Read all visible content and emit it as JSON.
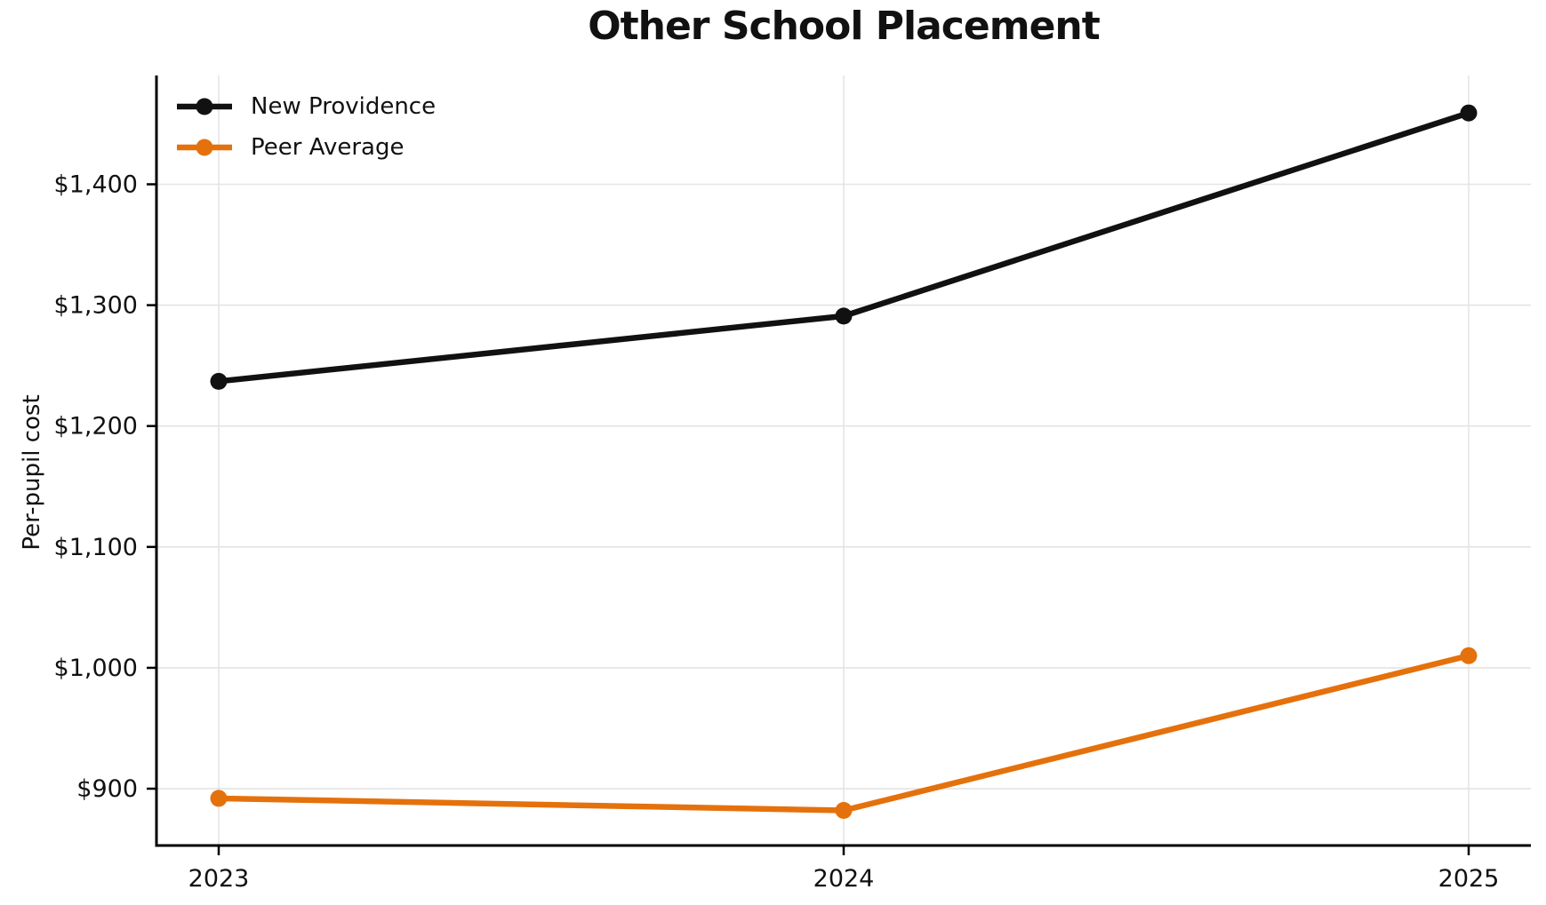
{
  "chart_data": {
    "type": "line",
    "title": "Other School Placement",
    "xlabel": "",
    "ylabel": "Per-pupil cost",
    "x": [
      2023,
      2024,
      2025
    ],
    "xtick_labels": [
      "2023",
      "2024",
      "2025"
    ],
    "ytick_values": [
      900,
      1000,
      1100,
      1200,
      1300,
      1400
    ],
    "ytick_labels": [
      "$900",
      "$1,000",
      "$1,100",
      "$1,200",
      "$1,300",
      "$1,400"
    ],
    "ylim": [
      853,
      1490
    ],
    "grid": true,
    "legend_position": "upper-left",
    "series": [
      {
        "name": "New Providence",
        "color": "#111111",
        "values": [
          1237,
          1291,
          1459
        ]
      },
      {
        "name": "Peer Average",
        "color": "#E5710C",
        "values": [
          892,
          882,
          1010
        ]
      }
    ]
  },
  "colors": {
    "background": "#ffffff",
    "grid": "#e4e4e4",
    "axis": "#000000",
    "text": "#111111"
  }
}
